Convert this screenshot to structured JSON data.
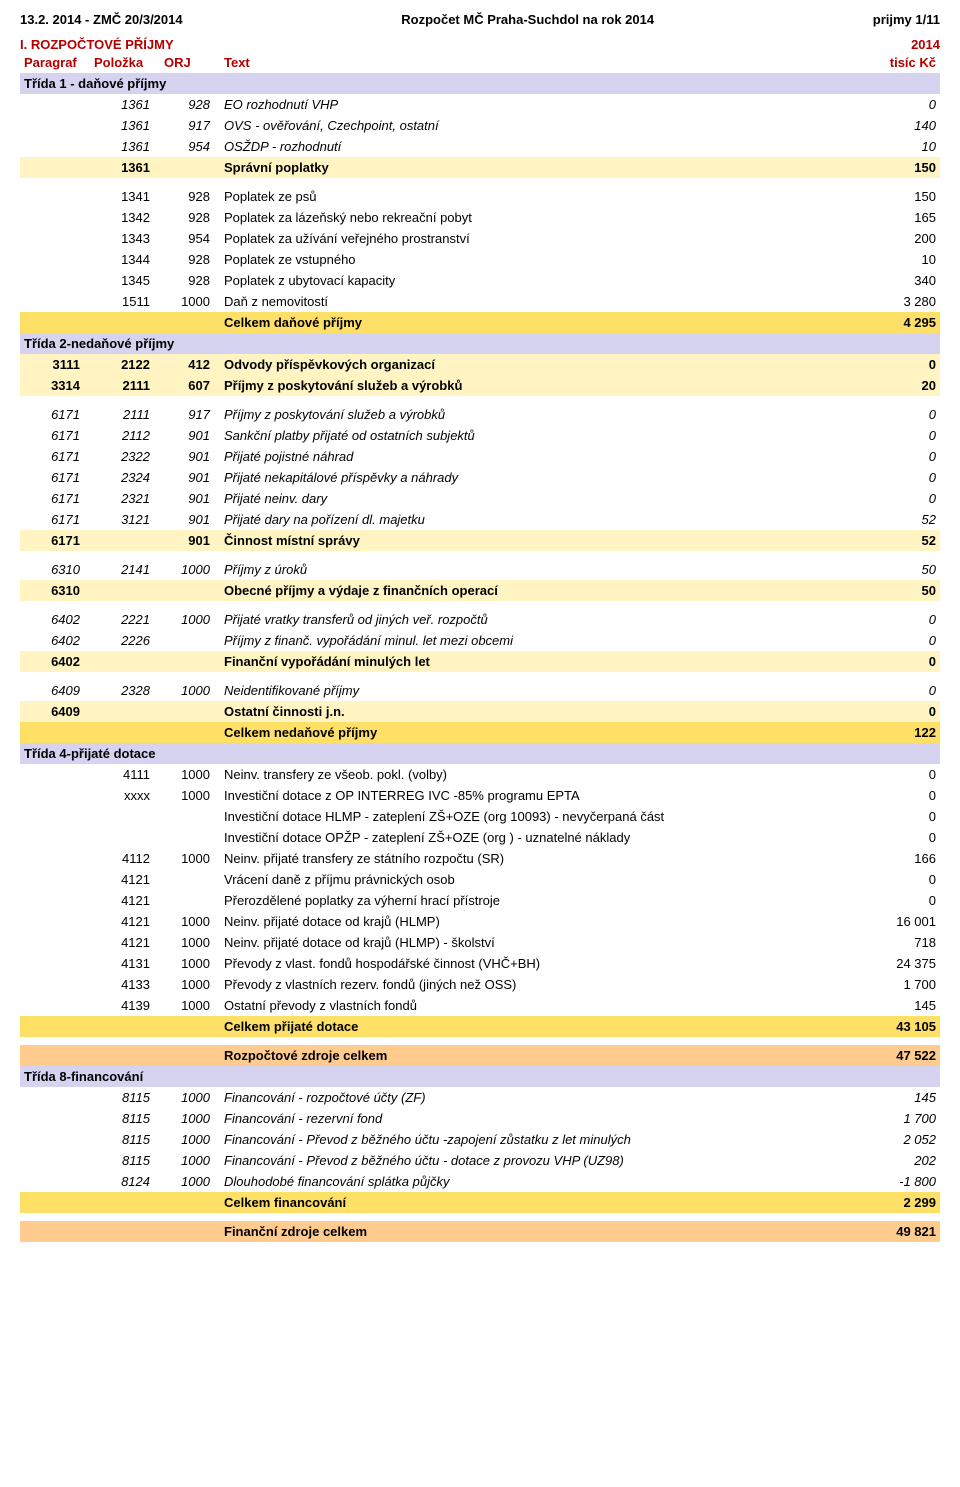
{
  "header": {
    "left": "13.2. 2014 - ZMČ 20/3/2014",
    "center": "Rozpočet MČ Praha-Suchdol na rok 2014",
    "right": "prijmy 1/11"
  },
  "section": {
    "title": "I. ROZPOČTOVÉ PŘÍJMY",
    "year": "2014"
  },
  "cols": {
    "para": "Paragraf",
    "pol": "Položka",
    "orj": "ORJ",
    "text": "Text",
    "unit": "tisíc Kč"
  },
  "styles": {
    "lavender": "#d6d3f0",
    "cream": "#fff4c2",
    "yellow": "#ffe066",
    "orange": "#ffcb8f",
    "white": "#ffffff",
    "accent_text": "#b30000",
    "font_size_pt": 10
  },
  "rows": [
    {
      "band": "lavender",
      "para": "Třída 1 - daňové příjmy",
      "pol": "",
      "orj": "",
      "text": "",
      "val": "",
      "span": true
    },
    {
      "band": "white",
      "italic": true,
      "para": "",
      "pol": "1361",
      "orj": "928",
      "text": "EO rozhodnutí VHP",
      "val": "0"
    },
    {
      "band": "white",
      "italic": true,
      "para": "",
      "pol": "1361",
      "orj": "917",
      "text": "OVS - ověřování, Czechpoint, ostatní",
      "val": "140"
    },
    {
      "band": "white",
      "italic": true,
      "para": "",
      "pol": "1361",
      "orj": "954",
      "text": "OSŽDP - rozhodnutí",
      "val": "10"
    },
    {
      "band": "cream",
      "para": "",
      "pol": "1361",
      "orj": "",
      "text": "Správní poplatky",
      "val": "150"
    },
    {
      "band": "spacer"
    },
    {
      "band": "white",
      "para": "",
      "pol": "1341",
      "orj": "928",
      "text": "Poplatek ze psů",
      "val": "150"
    },
    {
      "band": "white",
      "para": "",
      "pol": "1342",
      "orj": "928",
      "text": "Poplatek za lázeňský nebo rekreační pobyt",
      "val": "165"
    },
    {
      "band": "white",
      "para": "",
      "pol": "1343",
      "orj": "954",
      "text": "Poplatek za užívání veřejného prostranství",
      "val": "200"
    },
    {
      "band": "white",
      "para": "",
      "pol": "1344",
      "orj": "928",
      "text": "Poplatek ze vstupného",
      "val": "10"
    },
    {
      "band": "white",
      "para": "",
      "pol": "1345",
      "orj": "928",
      "text": "Poplatek z ubytovací kapacity",
      "val": "340"
    },
    {
      "band": "white",
      "para": "",
      "pol": "1511",
      "orj": "1000",
      "text": "Daň z nemovitostí",
      "val": "3 280"
    },
    {
      "band": "yellow",
      "para": "",
      "pol": "",
      "orj": "",
      "text": "Celkem daňové příjmy",
      "val": "4 295"
    },
    {
      "band": "lavender",
      "para": "Třída 2-nedaňové příjmy",
      "pol": "",
      "orj": "",
      "text": "",
      "val": "",
      "span": true
    },
    {
      "band": "cream",
      "para": "3111",
      "pol": "2122",
      "orj": "412",
      "text": "Odvody příspěvkových organizací",
      "val": "0"
    },
    {
      "band": "cream",
      "para": "3314",
      "pol": "2111",
      "orj": "607",
      "text": "Příjmy z poskytování služeb a výrobků",
      "val": "20"
    },
    {
      "band": "spacer"
    },
    {
      "band": "white",
      "italic": true,
      "para": "6171",
      "pol": "2111",
      "orj": "917",
      "text": "Příjmy z poskytování služeb a výrobků",
      "val": "0"
    },
    {
      "band": "white",
      "italic": true,
      "para": "6171",
      "pol": "2112",
      "orj": "901",
      "text": "Sankční platby přijaté od ostatních subjektů",
      "val": "0"
    },
    {
      "band": "white",
      "italic": true,
      "para": "6171",
      "pol": "2322",
      "orj": "901",
      "text": "Přijaté pojistné náhrad",
      "val": "0"
    },
    {
      "band": "white",
      "italic": true,
      "para": "6171",
      "pol": "2324",
      "orj": "901",
      "text": "Přijaté nekapitálové příspěvky a náhrady",
      "val": "0"
    },
    {
      "band": "white",
      "italic": true,
      "para": "6171",
      "pol": "2321",
      "orj": "901",
      "text": "Přijaté neinv. dary",
      "val": "0"
    },
    {
      "band": "white",
      "italic": true,
      "para": "6171",
      "pol": "3121",
      "orj": "901",
      "text": "Přijaté dary na pořízení dl. majetku",
      "val": "52"
    },
    {
      "band": "cream",
      "para": "6171",
      "pol": "",
      "orj": "901",
      "text": "Činnost místní správy",
      "val": "52"
    },
    {
      "band": "spacer"
    },
    {
      "band": "white",
      "italic": true,
      "para": "6310",
      "pol": "2141",
      "orj": "1000",
      "text": "Příjmy z úroků",
      "val": "50"
    },
    {
      "band": "cream",
      "para": "6310",
      "pol": "",
      "orj": "",
      "text": "Obecné příjmy a výdaje z finančních operací",
      "val": "50"
    },
    {
      "band": "spacer"
    },
    {
      "band": "white",
      "italic": true,
      "para": "6402",
      "pol": "2221",
      "orj": "1000",
      "text": "Přijaté vratky transferů od jiných veř. rozpočtů",
      "val": "0"
    },
    {
      "band": "white",
      "italic": true,
      "para": "6402",
      "pol": "2226",
      "orj": "",
      "text": "Příjmy z finanč. vypořádání minul. let mezi obcemi",
      "val": "0"
    },
    {
      "band": "cream",
      "para": "6402",
      "pol": "",
      "orj": "",
      "text": "Finanční vypořádání minulých let",
      "val": "0"
    },
    {
      "band": "spacer"
    },
    {
      "band": "white",
      "italic": true,
      "para": "6409",
      "pol": "2328",
      "orj": "1000",
      "text": "Neidentifikované příjmy",
      "val": "0"
    },
    {
      "band": "cream",
      "para": "6409",
      "pol": "",
      "orj": "",
      "text": "Ostatní činnosti j.n.",
      "val": "0"
    },
    {
      "band": "yellow",
      "para": "",
      "pol": "",
      "orj": "",
      "text": "Celkem nedaňové příjmy",
      "val": "122"
    },
    {
      "band": "lavender",
      "para": "Třída 4-přijaté dotace",
      "pol": "",
      "orj": "",
      "text": "",
      "val": "",
      "span": true
    },
    {
      "band": "white",
      "para": "",
      "pol": "4111",
      "orj": "1000",
      "text": "Neinv. transfery ze všeob. pokl. (volby)",
      "val": "0"
    },
    {
      "band": "white",
      "para": "",
      "pol": "xxxx",
      "orj": "1000",
      "text": "Investiční dotace z OP INTERREG IVC -85% programu EPTA",
      "val": "0"
    },
    {
      "band": "white",
      "para": "",
      "pol": "",
      "orj": "",
      "text": "Investiční dotace HLMP - zateplení ZŠ+OZE (org 10093) - nevyčerpaná část",
      "val": "0"
    },
    {
      "band": "white",
      "para": "",
      "pol": "",
      "orj": "",
      "text": "Investiční dotace OPŽP - zateplení ZŠ+OZE (org ) - uznatelné náklady",
      "val": "0"
    },
    {
      "band": "white",
      "para": "",
      "pol": "4112",
      "orj": "1000",
      "text": "Neinv. přijaté transfery ze státního rozpočtu (SR)",
      "val": "166"
    },
    {
      "band": "white",
      "para": "",
      "pol": "4121",
      "orj": "",
      "text": "Vrácení daně z příjmu právnických osob",
      "val": "0"
    },
    {
      "band": "white",
      "para": "",
      "pol": "4121",
      "orj": "",
      "text": "Přerozdělené poplatky za výherní hrací přístroje",
      "val": "0"
    },
    {
      "band": "white",
      "para": "",
      "pol": "4121",
      "orj": "1000",
      "text": "Neinv. přijaté dotace od krajů (HLMP)",
      "val": "16 001"
    },
    {
      "band": "white",
      "para": "",
      "pol": "4121",
      "orj": "1000",
      "text": "Neinv. přijaté dotace od krajů (HLMP) - školství",
      "val": "718"
    },
    {
      "band": "white",
      "para": "",
      "pol": "4131",
      "orj": "1000",
      "text": "Převody z vlast. fondů hospodářské činnost (VHČ+BH)",
      "val": "24 375"
    },
    {
      "band": "white",
      "para": "",
      "pol": "4133",
      "orj": "1000",
      "text": "Převody z vlastních rezerv. fondů (jiných než OSS)",
      "val": "1 700"
    },
    {
      "band": "white",
      "para": "",
      "pol": "4139",
      "orj": "1000",
      "text": "Ostatní převody z vlastních fondů",
      "val": "145"
    },
    {
      "band": "yellow",
      "para": "",
      "pol": "",
      "orj": "",
      "text": "Celkem přijaté dotace",
      "val": "43 105"
    },
    {
      "band": "spacer"
    },
    {
      "band": "orange",
      "para": "",
      "pol": "",
      "orj": "",
      "text": "Rozpočtové zdroje celkem",
      "val": "47 522"
    },
    {
      "band": "lavender",
      "para": "Třída 8-financování",
      "pol": "",
      "orj": "",
      "text": "",
      "val": "",
      "span": true
    },
    {
      "band": "white",
      "italic": true,
      "para": "",
      "pol": "8115",
      "orj": "1000",
      "text": "Financování - rozpočtové účty (ZF)",
      "val": "145"
    },
    {
      "band": "white",
      "italic": true,
      "para": "",
      "pol": "8115",
      "orj": "1000",
      "text": "Financování - rezervní fond",
      "val": "1 700"
    },
    {
      "band": "white",
      "italic": true,
      "para": "",
      "pol": "8115",
      "orj": "1000",
      "text": "Financování - Převod z běžného účtu -zapojení zůstatku z let minulých",
      "val": "2 052"
    },
    {
      "band": "white",
      "italic": true,
      "para": "",
      "pol": "8115",
      "orj": "1000",
      "text": "Financování - Převod z běžného účtu - dotace z provozu VHP (UZ98)",
      "val": "202"
    },
    {
      "band": "white",
      "italic": true,
      "para": "",
      "pol": "8124",
      "orj": "1000",
      "text": "Dlouhodobé financování splátka půjčky",
      "val": "-1 800"
    },
    {
      "band": "yellow",
      "para": "",
      "pol": "",
      "orj": "",
      "text": "Celkem financování",
      "val": "2 299"
    },
    {
      "band": "spacer"
    },
    {
      "band": "orange",
      "para": "",
      "pol": "",
      "orj": "",
      "text": "Finanční zdroje celkem",
      "val": "49 821"
    }
  ]
}
